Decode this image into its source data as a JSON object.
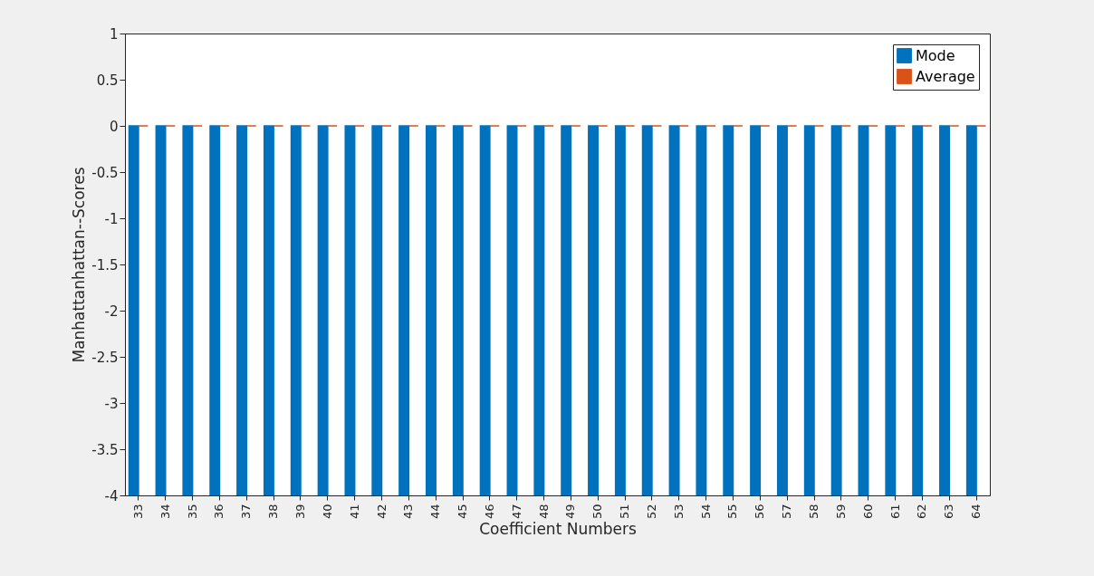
{
  "chart_data": {
    "type": "bar",
    "xlabel": "Coefficient Numbers",
    "ylabel": "Manhattanhattan--Scores",
    "categories": [
      "33",
      "34",
      "35",
      "36",
      "37",
      "38",
      "39",
      "40",
      "41",
      "42",
      "43",
      "44",
      "45",
      "46",
      "47",
      "48",
      "49",
      "50",
      "51",
      "52",
      "53",
      "54",
      "55",
      "56",
      "57",
      "58",
      "59",
      "60",
      "61",
      "62",
      "63",
      "64"
    ],
    "series": [
      {
        "name": "Mode",
        "color": "#0072bd",
        "values": [
          -4,
          -4,
          -4,
          -4,
          -4,
          -4,
          -4,
          -4,
          -4,
          -4,
          -4,
          -4,
          -4,
          -4,
          -4,
          -4,
          -4,
          -4,
          -4,
          -4,
          -4,
          -4,
          -4,
          -4,
          -4,
          -4,
          -4,
          -4,
          -4,
          -4,
          -4,
          -4
        ]
      },
      {
        "name": "Average",
        "color": "#d95319",
        "values": [
          0,
          0,
          0,
          0,
          0,
          0,
          0,
          0,
          0,
          0,
          0,
          0,
          0,
          0,
          0,
          0,
          0,
          0,
          0,
          0,
          0,
          0,
          0,
          0,
          0,
          0,
          0,
          0,
          0,
          0,
          0,
          0
        ]
      }
    ],
    "ylim": [
      -4,
      1
    ],
    "yticks": [
      1,
      0.5,
      0,
      -0.5,
      -1,
      -1.5,
      -2,
      -2.5,
      -3,
      -3.5,
      -4
    ],
    "grid": false,
    "legend": "top right"
  }
}
